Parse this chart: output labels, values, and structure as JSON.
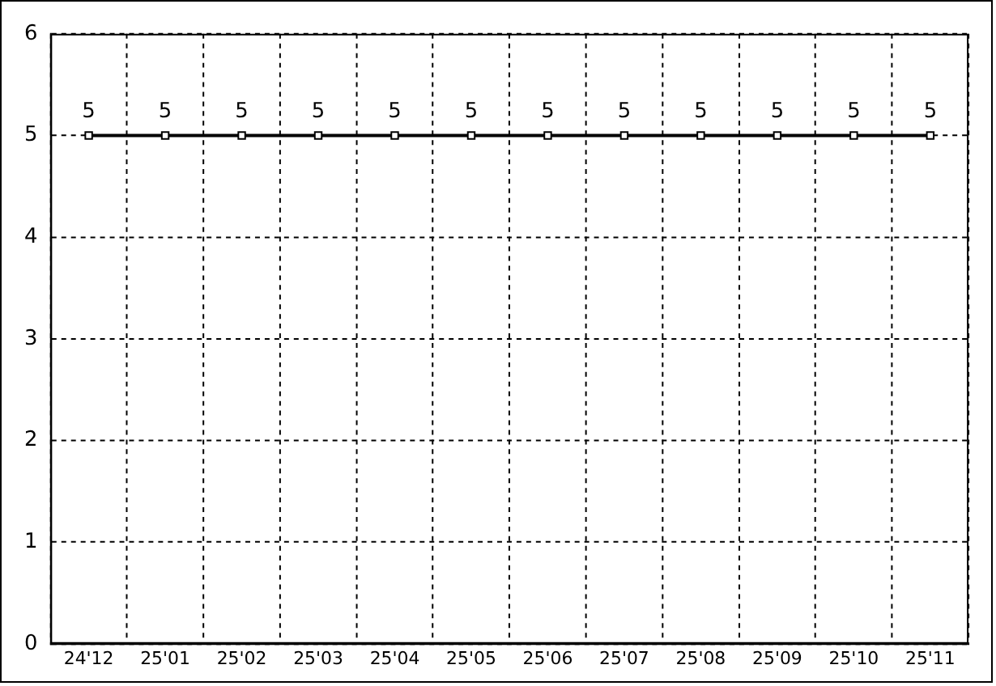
{
  "chart_data": {
    "type": "line",
    "categories": [
      "24'12",
      "25'01",
      "25'02",
      "25'03",
      "25'04",
      "25'05",
      "25'06",
      "25'07",
      "25'08",
      "25'09",
      "25'10",
      "25'11"
    ],
    "series": [
      {
        "color": "#000000",
        "values": [
          5,
          5,
          5,
          5,
          5,
          5,
          5,
          5,
          5,
          5,
          5,
          5
        ]
      }
    ],
    "ylim": [
      0,
      6
    ],
    "yticks": [
      0,
      1,
      2,
      3,
      4,
      5,
      6
    ],
    "grid": true,
    "legend": false,
    "marker": "square",
    "line_style": "solid",
    "data_labels": true
  }
}
